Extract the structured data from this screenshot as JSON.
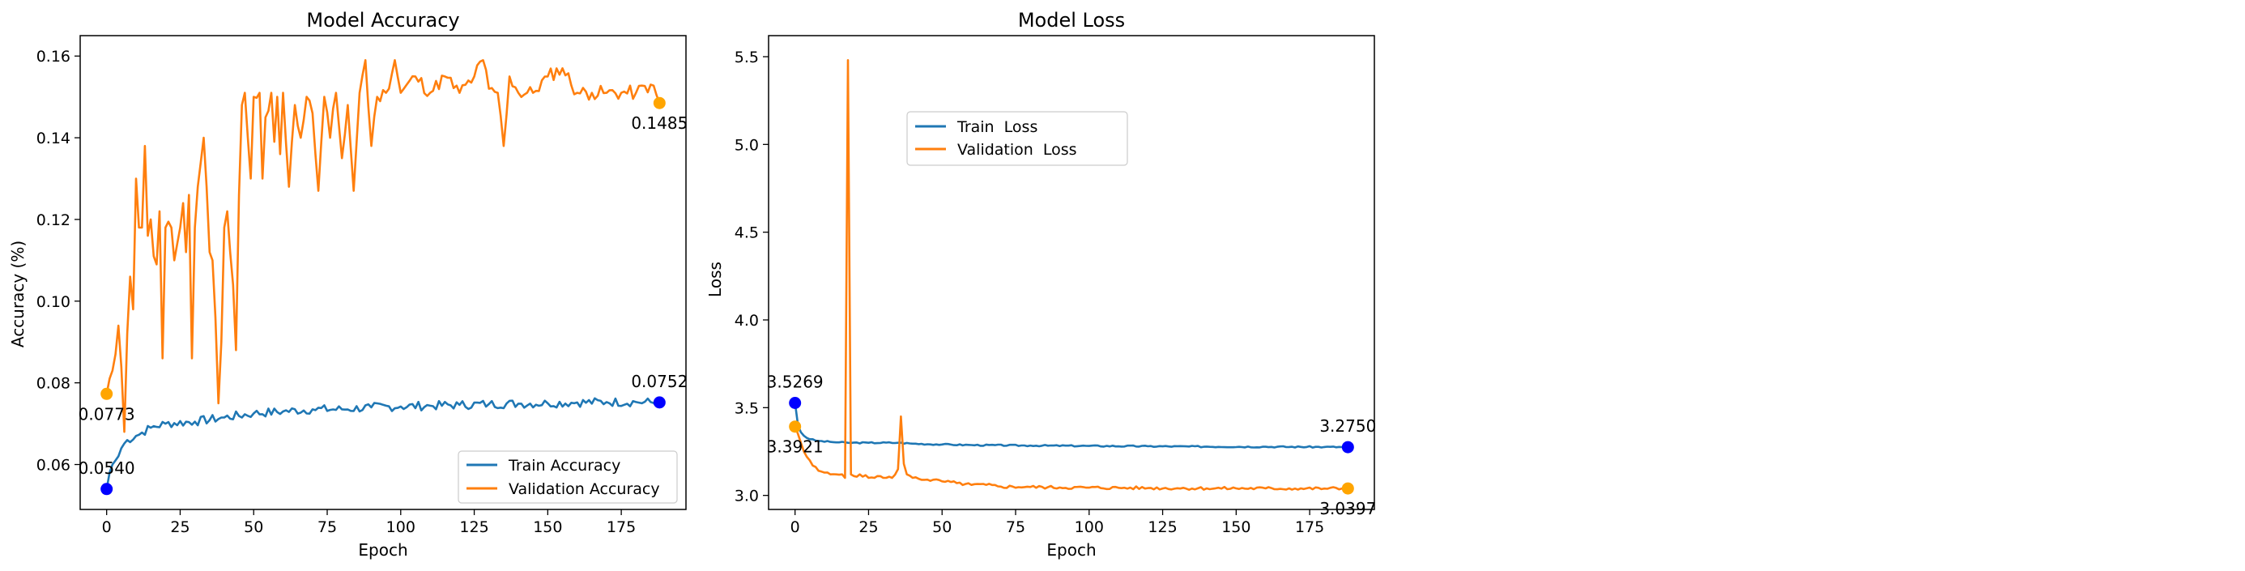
{
  "chart_data": [
    {
      "type": "line",
      "title": "Model Accuracy",
      "xlabel": "Epoch",
      "ylabel": "Accuracy (%)",
      "xlim": [
        -9,
        197
      ],
      "ylim": [
        0.049,
        0.165
      ],
      "xticks": [
        0,
        25,
        50,
        75,
        100,
        125,
        150,
        175
      ],
      "yticks": [
        0.06,
        0.08,
        0.1,
        0.12,
        0.14,
        0.16
      ],
      "ytick_labels": [
        "0.06",
        "0.08",
        "0.10",
        "0.12",
        "0.14",
        "0.16"
      ],
      "legend_position": "lower-right",
      "series": [
        {
          "name": "Train Accuracy",
          "color": "#1f77b4",
          "keypoints": [
            [
              0,
              0.054
            ],
            [
              1,
              0.058
            ],
            [
              2,
              0.06
            ],
            [
              3,
              0.061
            ],
            [
              4,
              0.062
            ],
            [
              5,
              0.064
            ],
            [
              7,
              0.066
            ],
            [
              10,
              0.067
            ],
            [
              15,
              0.069
            ],
            [
              20,
              0.07
            ],
            [
              30,
              0.0705
            ],
            [
              40,
              0.0715
            ],
            [
              50,
              0.0725
            ],
            [
              60,
              0.073
            ],
            [
              70,
              0.0735
            ],
            [
              80,
              0.0735
            ],
            [
              90,
              0.074
            ],
            [
              100,
              0.0742
            ],
            [
              110,
              0.0744
            ],
            [
              120,
              0.0746
            ],
            [
              130,
              0.0748
            ],
            [
              140,
              0.0749
            ],
            [
              150,
              0.075
            ],
            [
              160,
              0.0752
            ],
            [
              170,
              0.0753
            ],
            [
              180,
              0.0753
            ],
            [
              188,
              0.0752
            ]
          ],
          "noise": 0.0011,
          "seed": 7
        },
        {
          "name": "Validation Accuracy",
          "color": "#ff7f0e",
          "keypoints": [
            [
              0,
              0.0773
            ],
            [
              1,
              0.081
            ],
            [
              2,
              0.083
            ],
            [
              3,
              0.087
            ],
            [
              4,
              0.094
            ],
            [
              5,
              0.084
            ],
            [
              6,
              0.068
            ],
            [
              7,
              0.092
            ],
            [
              8,
              0.106
            ],
            [
              9,
              0.098
            ],
            [
              10,
              0.13
            ],
            [
              11,
              0.118
            ],
            [
              12,
              0.118
            ],
            [
              13,
              0.138
            ],
            [
              14,
              0.116
            ],
            [
              15,
              0.12
            ],
            [
              16,
              0.111
            ],
            [
              17,
              0.109
            ],
            [
              18,
              0.122
            ],
            [
              19,
              0.086
            ],
            [
              20,
              0.118
            ],
            [
              22,
              0.118
            ],
            [
              23,
              0.11
            ],
            [
              24,
              0.114
            ],
            [
              25,
              0.118
            ],
            [
              26,
              0.124
            ],
            [
              27,
              0.112
            ],
            [
              28,
              0.126
            ],
            [
              29,
              0.086
            ],
            [
              30,
              0.118
            ],
            [
              31,
              0.128
            ],
            [
              32,
              0.134
            ],
            [
              33,
              0.14
            ],
            [
              34,
              0.128
            ],
            [
              35,
              0.112
            ],
            [
              36,
              0.11
            ],
            [
              37,
              0.096
            ],
            [
              38,
              0.075
            ],
            [
              39,
              0.09
            ],
            [
              40,
              0.118
            ],
            [
              41,
              0.122
            ],
            [
              42,
              0.112
            ],
            [
              43,
              0.104
            ],
            [
              44,
              0.088
            ],
            [
              45,
              0.126
            ],
            [
              46,
              0.148
            ],
            [
              47,
              0.151
            ],
            [
              48,
              0.14
            ],
            [
              49,
              0.13
            ],
            [
              50,
              0.15
            ],
            [
              52,
              0.151
            ],
            [
              53,
              0.13
            ],
            [
              54,
              0.145
            ],
            [
              56,
              0.151
            ],
            [
              57,
              0.139
            ],
            [
              58,
              0.15
            ],
            [
              59,
              0.136
            ],
            [
              60,
              0.151
            ],
            [
              62,
              0.128
            ],
            [
              64,
              0.148
            ],
            [
              66,
              0.14
            ],
            [
              68,
              0.15
            ],
            [
              70,
              0.146
            ],
            [
              72,
              0.127
            ],
            [
              74,
              0.15
            ],
            [
              76,
              0.14
            ],
            [
              78,
              0.151
            ],
            [
              80,
              0.135
            ],
            [
              82,
              0.148
            ],
            [
              84,
              0.127
            ],
            [
              86,
              0.151
            ],
            [
              88,
              0.159
            ],
            [
              90,
              0.138
            ],
            [
              92,
              0.15
            ],
            [
              95,
              0.151
            ],
            [
              98,
              0.159
            ],
            [
              100,
              0.151
            ],
            [
              105,
              0.155
            ],
            [
              110,
              0.151
            ],
            [
              115,
              0.155
            ],
            [
              120,
              0.151
            ],
            [
              125,
              0.155
            ],
            [
              128,
              0.159
            ],
            [
              130,
              0.152
            ],
            [
              133,
              0.151
            ],
            [
              135,
              0.138
            ],
            [
              137,
              0.155
            ],
            [
              140,
              0.151
            ],
            [
              145,
              0.151
            ],
            [
              150,
              0.155
            ],
            [
              155,
              0.157
            ],
            [
              160,
              0.151
            ],
            [
              165,
              0.151
            ],
            [
              170,
              0.151
            ],
            [
              175,
              0.151
            ],
            [
              180,
              0.151
            ],
            [
              185,
              0.153
            ],
            [
              188,
              0.1485
            ]
          ],
          "noise": 0.0018,
          "seed": 11
        }
      ],
      "annotations": [
        {
          "series": 0,
          "x": 0,
          "y": 0.054,
          "label": "0.0540",
          "marker_color": "#0000ff",
          "placement": "above"
        },
        {
          "series": 0,
          "x": 188,
          "y": 0.0752,
          "label": "0.0752",
          "marker_color": "#0000ff",
          "placement": "above"
        },
        {
          "series": 1,
          "x": 0,
          "y": 0.0773,
          "label": "0.0773",
          "marker_color": "#ffa500",
          "placement": "below"
        },
        {
          "series": 1,
          "x": 188,
          "y": 0.1485,
          "label": "0.1485",
          "marker_color": "#ffa500",
          "placement": "below"
        }
      ]
    },
    {
      "type": "line",
      "title": "Model Loss",
      "xlabel": "Epoch",
      "ylabel": "Loss",
      "xlim": [
        -9,
        197
      ],
      "ylim": [
        2.92,
        5.62
      ],
      "xticks": [
        0,
        25,
        50,
        75,
        100,
        125,
        150,
        175
      ],
      "yticks": [
        3.0,
        3.5,
        4.0,
        4.5,
        5.0,
        5.5
      ],
      "ytick_labels": [
        "3.0",
        "3.5",
        "4.0",
        "4.5",
        "5.0",
        "5.5"
      ],
      "legend_position": "upper-center",
      "series": [
        {
          "name": "Train  Loss",
          "color": "#1f77b4",
          "keypoints": [
            [
              0,
              3.5269
            ],
            [
              1,
              3.4
            ],
            [
              2,
              3.36
            ],
            [
              3,
              3.34
            ],
            [
              5,
              3.32
            ],
            [
              8,
              3.31
            ],
            [
              12,
              3.305
            ],
            [
              18,
              3.3
            ],
            [
              25,
              3.3
            ],
            [
              35,
              3.3
            ],
            [
              40,
              3.295
            ],
            [
              50,
              3.29
            ],
            [
              60,
              3.287
            ],
            [
              80,
              3.284
            ],
            [
              100,
              3.282
            ],
            [
              120,
              3.28
            ],
            [
              140,
              3.278
            ],
            [
              160,
              3.277
            ],
            [
              180,
              3.276
            ],
            [
              188,
              3.275
            ]
          ],
          "noise": 0.004,
          "seed": 3
        },
        {
          "name": "Validation  Loss",
          "color": "#ff7f0e",
          "keypoints": [
            [
              0,
              3.3921
            ],
            [
              1,
              3.35
            ],
            [
              2,
              3.3
            ],
            [
              3,
              3.25
            ],
            [
              4,
              3.22
            ],
            [
              5,
              3.2
            ],
            [
              6,
              3.17
            ],
            [
              8,
              3.14
            ],
            [
              10,
              3.13
            ],
            [
              12,
              3.12
            ],
            [
              14,
              3.12
            ],
            [
              16,
              3.12
            ],
            [
              17,
              3.1
            ],
            [
              18,
              5.48
            ],
            [
              19,
              3.12
            ],
            [
              20,
              3.11
            ],
            [
              22,
              3.12
            ],
            [
              25,
              3.1
            ],
            [
              28,
              3.11
            ],
            [
              30,
              3.1
            ],
            [
              33,
              3.1
            ],
            [
              35,
              3.15
            ],
            [
              36,
              3.45
            ],
            [
              37,
              3.18
            ],
            [
              38,
              3.12
            ],
            [
              40,
              3.1
            ],
            [
              45,
              3.09
            ],
            [
              50,
              3.08
            ],
            [
              55,
              3.07
            ],
            [
              60,
              3.06
            ],
            [
              65,
              3.06
            ],
            [
              70,
              3.05
            ],
            [
              80,
              3.048
            ],
            [
              90,
              3.045
            ],
            [
              100,
              3.044
            ],
            [
              110,
              3.043
            ],
            [
              120,
              3.042
            ],
            [
              130,
              3.041
            ],
            [
              140,
              3.04
            ],
            [
              150,
              3.04
            ],
            [
              160,
              3.04
            ],
            [
              170,
              3.039
            ],
            [
              180,
              3.039
            ],
            [
              188,
              3.0397
            ]
          ],
          "noise": 0.009,
          "seed": 5
        }
      ],
      "annotations": [
        {
          "series": 0,
          "x": 0,
          "y": 3.5269,
          "label": "3.5269",
          "marker_color": "#0000ff",
          "placement": "above"
        },
        {
          "series": 0,
          "x": 188,
          "y": 3.275,
          "label": "3.2750",
          "marker_color": "#0000ff",
          "placement": "above"
        },
        {
          "series": 1,
          "x": 0,
          "y": 3.3921,
          "label": "3.3921",
          "marker_color": "#ffa500",
          "placement": "below"
        },
        {
          "series": 1,
          "x": 188,
          "y": 3.0397,
          "label": "3.0397",
          "marker_color": "#ffa500",
          "placement": "below"
        }
      ]
    }
  ]
}
